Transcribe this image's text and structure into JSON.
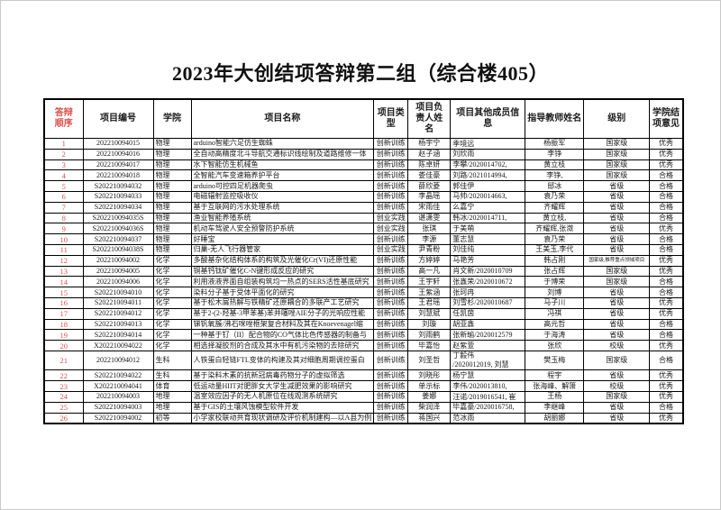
{
  "page": {
    "title": "2023年大创结项答辩第二组（综合楼405）"
  },
  "colors": {
    "order_red": "#d9534f",
    "border": "#000000",
    "text": "#1a1a1a"
  },
  "table": {
    "headers": [
      "答辩顺序",
      "项目编号",
      "学院",
      "项目名称",
      "项目类型",
      "项目负责人姓名",
      "项目其他成员信息",
      "指导教师姓名",
      "级别",
      "学院结项意见"
    ],
    "rows": [
      [
        "1",
        "202210094015",
        "物理",
        "arduino智能六足仿生蜘蛛",
        "创新训练",
        "杨宇宁",
        "季境远",
        "杨振军",
        "国家级",
        "优秀"
      ],
      [
        "2",
        "202210094016",
        "物理",
        "全自动高精度北斗导航交通标识线绘制及道路维修一体",
        "创新训练",
        "赵子涵",
        "刘欣雨",
        "李铮",
        "国家级",
        "优秀"
      ],
      [
        "3",
        "202210094017",
        "物理",
        "水下智能仿生机械鱼",
        "创新训练",
        "陈卓妍",
        "李攀/2020014702,",
        "黄立枝",
        "国家级",
        "优秀"
      ],
      [
        "4",
        "202210094018",
        "物理",
        "全智能汽车变速箱养护平台",
        "创新训练",
        "娄佳豪",
        "刘路/2021014994,",
        "李铮,",
        "国家级",
        "合格"
      ],
      [
        "5",
        "S202210094032",
        "物理",
        "arduino可控四足机器爬虫",
        "创新训练",
        "薛欣菱",
        "郭佳伊",
        "邸冰",
        "省级",
        "合格"
      ],
      [
        "6",
        "S202210094033",
        "物理",
        "电磁辐射监控吸收仪",
        "创新训练",
        "李晶瑶",
        "马帅/2020014663,",
        "袁乃荣",
        "省级",
        "合格"
      ],
      [
        "7",
        "S202210094034",
        "物理",
        "基于互联网的污水处理系统",
        "创新训练",
        "宋雨佳",
        "么嘉宁",
        "齐耀辉",
        "省级",
        "合格"
      ],
      [
        "8",
        "S202210094035S",
        "物理",
        "渔业智能养殖系统",
        "创业实践",
        "谌潇雯",
        "韩冰/2020014711,",
        "黄立枝,",
        "省级",
        "合格"
      ],
      [
        "9",
        "S202210094036S",
        "物理",
        "机动车驾驶人安全预警防护系统",
        "创业实践",
        "张琪",
        "于美萌",
        "齐耀辉,张潋",
        "省级",
        "优秀"
      ],
      [
        "10",
        "S202210094037",
        "物理",
        "好睡宝",
        "创新训练",
        "李源",
        "董志慧",
        "袁乃荣",
        "省级",
        "合格"
      ],
      [
        "11",
        "S202210094038S",
        "物理",
        "归巢-无人飞行器管家",
        "创业实践",
        "尹青粉",
        "刘佳纯",
        "王美玉,李代",
        "省级",
        "合格"
      ],
      [
        "12",
        "202210094002",
        "化学",
        "多酸基杂化结构体系的构筑及光催化Cr(VI)还原性能",
        "创新训练",
        "方婷婷",
        "马艳芳",
        "韩占刚",
        "国家级,推荐重点领域项目",
        "优秀"
      ],
      [
        "13",
        "202210094005",
        "化学",
        "铜基钙钛矿催化C-N键形成反应的研究",
        "创新训练",
        "高一凡",
        "肖文新/2020010709",
        "张占辉",
        "国家级",
        "优秀"
      ],
      [
        "14",
        "202210094006",
        "化学",
        "利用液液界面自组装构筑均一热点的SERS活性基底研究",
        "创新训练",
        "王宇轩",
        "张鑫荣/2020010672",
        "于博荣",
        "国家级",
        "合格"
      ],
      [
        "15",
        "S202210094010",
        "化学",
        "染料分子基于受体平面化的研究",
        "创新训练",
        "王紫涵",
        "张珂冉",
        "刘博",
        "省级",
        "合格"
      ],
      [
        "16",
        "S202210094011",
        "化学",
        "基于松木屑热解与铁精矿还原耦合的多联产工艺研究",
        "创新训练",
        "王君瑶",
        "刘雪杉/2020010687",
        "马子川",
        "省级",
        "优秀"
      ],
      [
        "17",
        "S202210094012",
        "化学",
        "基于2-(2-羟基-3甲苯基)苯并噻唑AIE分子的光响应性能",
        "创新训练",
        "刘慧斌",
        "任凯茵",
        "冯祺",
        "省级",
        "优秀"
      ],
      [
        "18",
        "S202210094013",
        "化学",
        "锑钒氧簇/沸石咪唑框架复合材料及其在Knoevenagel缩",
        "创新训练",
        "刘璇",
        "胡亚鑫",
        "高元哲",
        "省级",
        "合格"
      ],
      [
        "19",
        "S202210094014",
        "化学",
        "一种基于钌（II）配合物的CO气体比色传感器的制备与",
        "创新训练",
        "刘雨鹤",
        "张新瑜/2020012579",
        "于海涛",
        "省级",
        "合格"
      ],
      [
        "20",
        "X202210094022",
        "化学",
        "相选择凝胶剂的合成及其水中有机污染物的去除研究",
        "创新训练",
        "毕嘉怡",
        "赵紫萱",
        "张欣",
        "校级",
        "优秀"
      ],
      [
        "21",
        "202210094012",
        "生科",
        "人铁蛋白轻链FTL变体的构建及其对细胞周期调控蛋白",
        "创新训练",
        "刘圣哲",
        "丁毅伟\n/2020012019, 刘慧",
        "樊玉梅",
        "国家级",
        "合格"
      ],
      [
        "22",
        "S202210094022",
        "生科",
        "基于染料木素的抗新冠病毒药物分子的虚拟筛选",
        "创新训练",
        "刘晓彤",
        "杨宁慧",
        "程宇",
        "省级",
        "优秀"
      ],
      [
        "23",
        "X202210094041",
        "体育",
        "低运动量HIIT对肥胖女大学生减肥效果的影响研究",
        "创新训练",
        "单示标",
        "李伟/2020013810,",
        "张海峰、解箫",
        "校级",
        "优秀"
      ],
      [
        "24",
        "202210094003",
        "地理",
        "温室效应因子的无人机原位在线观测系统研究",
        "创新训练",
        "姜娜",
        "汪诺/2019016541, 崔",
        "王杨",
        "国家级",
        "优秀"
      ],
      [
        "25",
        "S202210094003",
        "地理",
        "基于GIS的土壤风蚀模型软件开发",
        "创新训练",
        "柴润泽",
        "毕嘉豪/2020016758,",
        "李继峰",
        "省级",
        "合格"
      ],
      [
        "26",
        "S202210094002",
        "初等",
        "小学家校联动共育现状调研及评价机制建构—以A县为例",
        "创新训练",
        "蒋国兴",
        "范冰雨",
        "胡丽娜",
        "省级",
        "优秀"
      ]
    ]
  }
}
